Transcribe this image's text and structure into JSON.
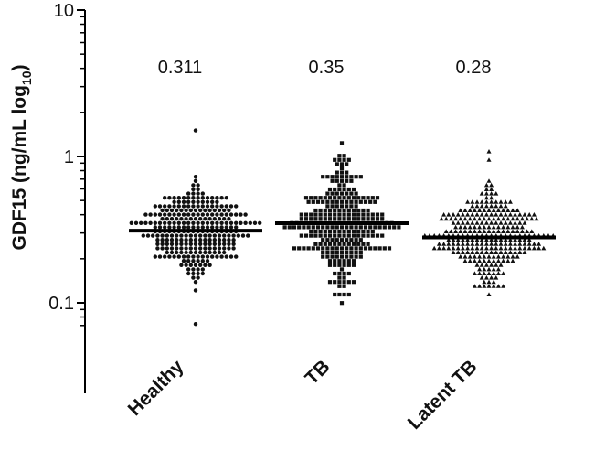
{
  "chart_data": {
    "type": "scatter",
    "title": "",
    "ylabel_main": "GDF15 (ng/mL log",
    "ylabel_sub": "10",
    "ylabel_close": ")",
    "xlabel": "",
    "yscale": "log",
    "ylim": [
      0.06,
      10
    ],
    "yticks": [
      {
        "value": 0.1,
        "label": "0.1"
      },
      {
        "value": 1,
        "label": "1"
      },
      {
        "value": 10,
        "label": "10"
      }
    ],
    "grid": false,
    "legend": "none",
    "colors": {
      "points": "#111111",
      "median": "#000000",
      "axis": "#000000"
    },
    "groups": [
      {
        "category": "Healthy",
        "marker": "circle",
        "median": 0.311,
        "median_label": "0.311",
        "n": 300,
        "min": 0.07,
        "max": 1.55,
        "q1": 0.25,
        "q3": 0.39
      },
      {
        "category": "TB",
        "marker": "square",
        "median": 0.35,
        "median_label": "0.35",
        "n": 300,
        "min": 0.1,
        "max": 1.2,
        "q1": 0.26,
        "q3": 0.47
      },
      {
        "category": "Latent TB",
        "marker": "triangle",
        "median": 0.28,
        "median_label": "0.28",
        "n": 300,
        "min": 0.115,
        "max": 1.1,
        "q1": 0.22,
        "q3": 0.36
      }
    ]
  }
}
